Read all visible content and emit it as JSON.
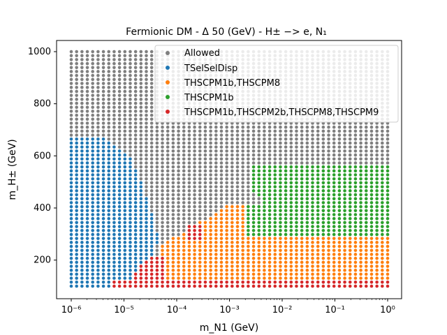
{
  "chart_data": {
    "type": "scatter",
    "title": "Fermionic DM - Δ 50 (GeV) - H± −> e, N₁",
    "xlabel": "m_N1 (GeV)",
    "ylabel": "m_H± (GeV)",
    "x_scale": "log",
    "x_ticks": [
      "10⁻⁶",
      "10⁻⁵",
      "10⁻⁴",
      "10⁻³",
      "10⁻²",
      "10⁻¹",
      "10⁰"
    ],
    "y_ticks": [
      "200",
      "400",
      "600",
      "800",
      "1000"
    ],
    "xlim": [
      1e-06,
      1
    ],
    "ylim": [
      100,
      1000
    ],
    "grid": false,
    "legend_position": "top-right",
    "colors": {
      "Allowed": "#7f7f7f",
      "TSelSelDisp": "#1f77b4",
      "THSCPM1b,THSCPM8": "#ff7f0e",
      "THSCPM1b": "#2ca02c",
      "THSCPM1b,THSCPM2b,THSCPM8,THSCPM9": "#d62728"
    },
    "series": [
      {
        "name": "Allowed"
      },
      {
        "name": "TSelSelDisp"
      },
      {
        "name": "THSCPM1b,THSCPM8"
      },
      {
        "name": "THSCPM1b"
      },
      {
        "name": "THSCPM1b,THSCPM2b,THSCPM8,THSCPM9"
      }
    ],
    "grid_points": {
      "x_log10_range": [
        -6,
        0
      ],
      "x_count": 60,
      "y_range": [
        100,
        1000
      ],
      "y_count": 60
    },
    "regions": {
      "TSelSelDisp_boundary": [
        [
          -6.0,
          620
        ],
        [
          -5.8,
          650
        ],
        [
          -5.6,
          670
        ],
        [
          -5.4,
          670
        ],
        [
          -5.2,
          650
        ],
        [
          -5.0,
          620
        ],
        [
          -4.85,
          580
        ],
        [
          -4.7,
          520
        ],
        [
          -4.6,
          460
        ],
        [
          -4.45,
          370
        ],
        [
          -4.35,
          280
        ],
        [
          -4.4,
          230
        ],
        [
          -4.6,
          200
        ],
        [
          -4.8,
          150
        ],
        [
          -5.0,
          100
        ]
      ],
      "red_low_band_max_y": 120,
      "red_patch": {
        "x_log10_range": [
          -3.8,
          -3.3
        ],
        "y_range": [
          270,
          330
        ]
      },
      "orange": {
        "x_log10_start": -4.35,
        "y_range": [
          130,
          420
        ]
      },
      "green": {
        "x_log10_start": -2.6,
        "y_range": [
          300,
          560
        ]
      }
    }
  }
}
